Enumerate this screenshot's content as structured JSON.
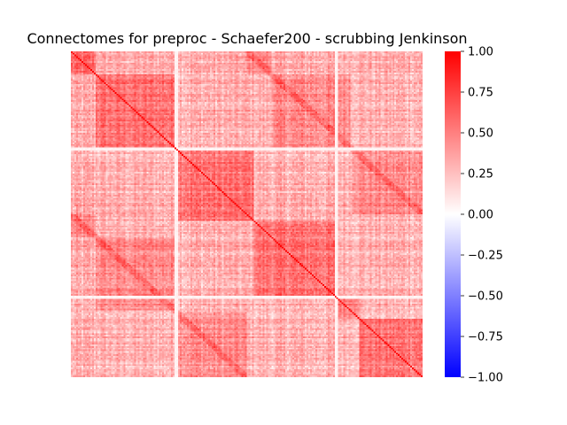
{
  "chart_data": {
    "type": "heatmap",
    "title": "Connectomes for preproc - Schaefer200 - scrubbing Jenkinson",
    "matrix_size": 200,
    "network_boundaries": [
      14,
      59,
      60,
      104,
      150,
      151,
      164,
      200
    ],
    "diagonal_value": 1.0,
    "typical_within_network_value": 0.55,
    "typical_between_network_value": 0.3,
    "weak_rows": [
      59,
      60,
      150,
      151
    ],
    "weak_row_value": 0.05,
    "colorbar": {
      "colormap": "bwr",
      "range": [
        -1.0,
        1.0
      ],
      "colors": {
        "low": "#0000ff",
        "mid": "#ffffff",
        "high": "#ff0000"
      },
      "tick_labels": [
        "1.00",
        "0.75",
        "0.50",
        "0.25",
        "0.00",
        "−0.25",
        "−0.50",
        "−0.75",
        "−1.00"
      ]
    }
  }
}
